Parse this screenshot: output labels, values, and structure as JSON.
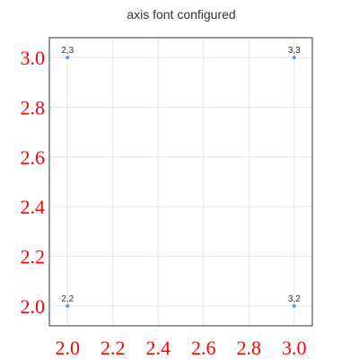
{
  "chart_data": {
    "type": "scatter",
    "title": "axis font configured",
    "xlabel": "",
    "ylabel": "",
    "xlim": [
      1.92,
      3.08
    ],
    "ylim": [
      1.92,
      3.08
    ],
    "xticks": [
      2.0,
      2.2,
      2.4,
      2.6,
      2.8,
      3.0
    ],
    "yticks": [
      2.0,
      2.2,
      2.4,
      2.6,
      2.8,
      3.0
    ],
    "grid": true,
    "legend": "none",
    "tick_color": "#ff0000",
    "point_color": "#5b9bd5",
    "series": [
      {
        "points": [
          {
            "x": 2,
            "y": 3,
            "label": "2,3"
          },
          {
            "x": 3,
            "y": 3,
            "label": "3,3"
          },
          {
            "x": 2,
            "y": 2,
            "label": "2,2"
          },
          {
            "x": 3,
            "y": 2,
            "label": "3,2"
          }
        ]
      }
    ]
  }
}
